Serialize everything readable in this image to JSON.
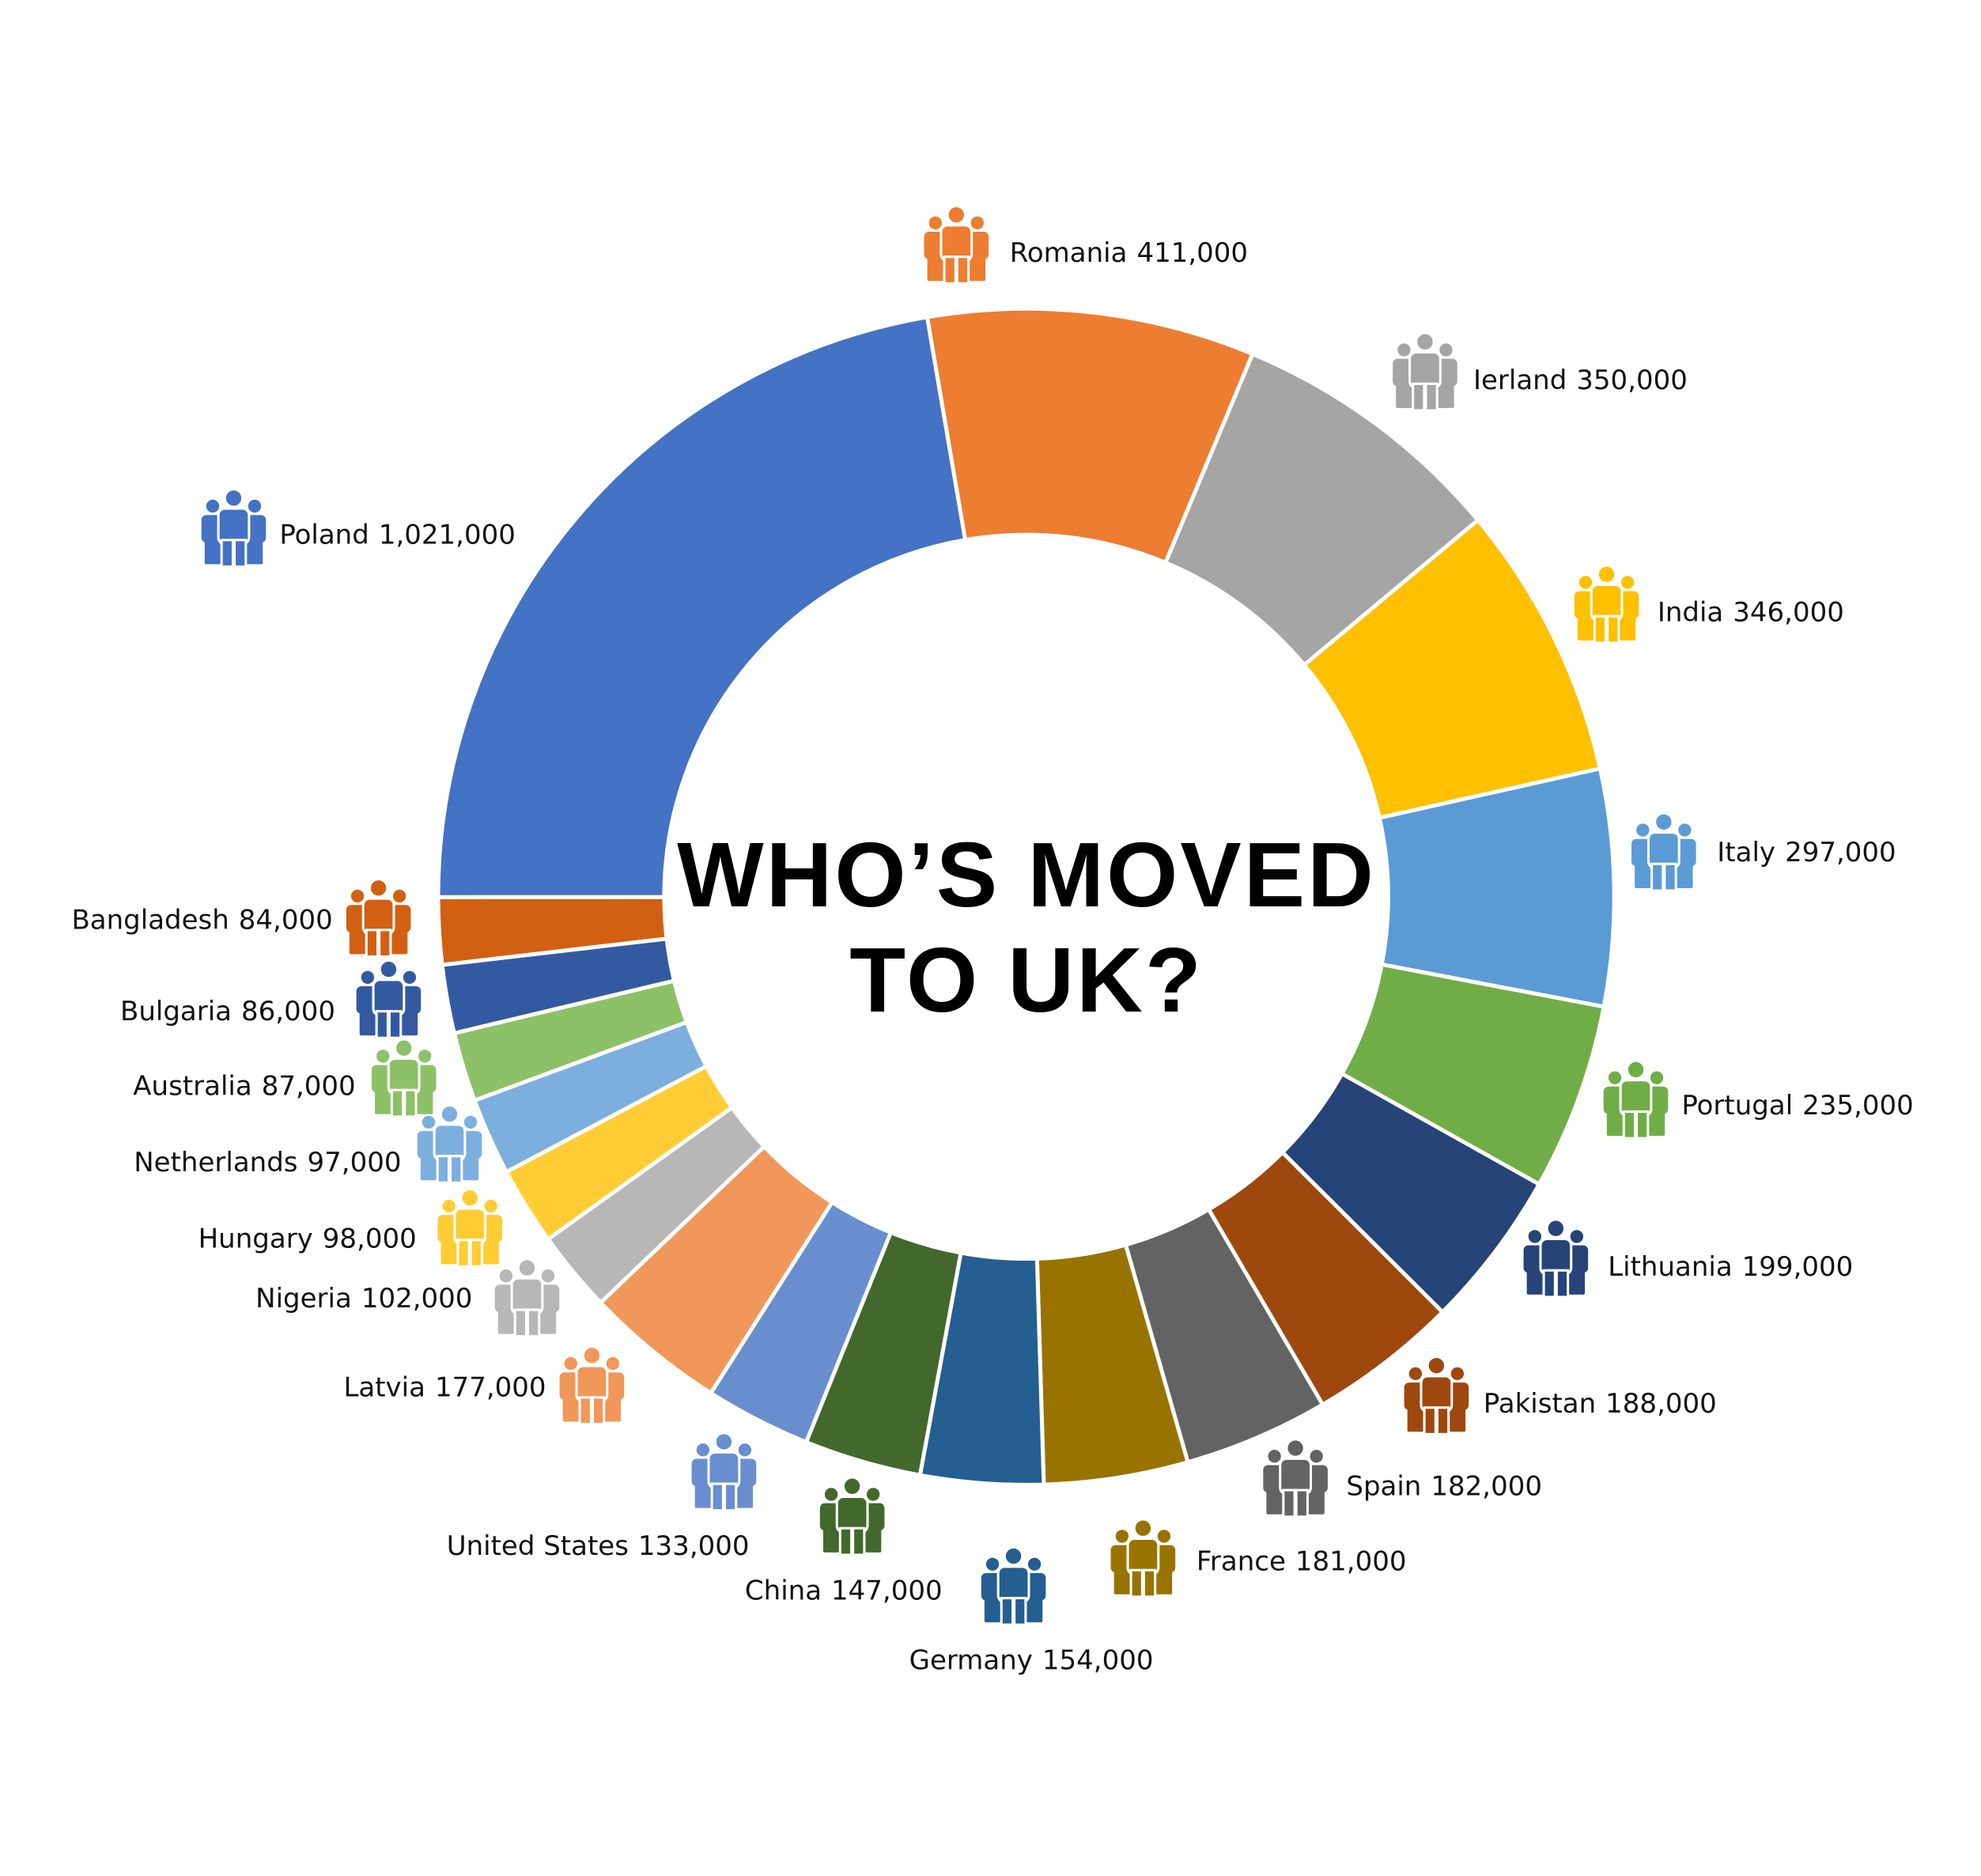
{
  "chart_data": {
    "type": "donut",
    "title": "WHO’S MOVED TO UK?",
    "categories": [
      "Romania",
      "Ierland",
      "India",
      "Italy",
      "Portugal",
      "Lithuania",
      "Pakistan",
      "Spain",
      "France",
      "Germany",
      "China",
      "United States",
      "Latvia",
      "Nigeria",
      "Hungary",
      "Netherlands",
      "Australia",
      "Bulgaria",
      "Bangladesh",
      "Poland"
    ],
    "values": [
      411000,
      350000,
      346000,
      297000,
      235000,
      199000,
      188000,
      182000,
      181000,
      154000,
      147000,
      133000,
      177000,
      102000,
      98000,
      97000,
      87000,
      86000,
      84000,
      1021000
    ],
    "value_labels": [
      "411,000",
      "350,000",
      "346,000",
      "297,000",
      "235,000",
      "199,000",
      "188,000",
      "182,000",
      "181,000",
      "154,000",
      "147,000",
      "133,000",
      "177,000",
      "102,000",
      "98,000",
      "97,000",
      "87,000",
      "86,000",
      "84,000",
      "1,021,000"
    ],
    "colors": [
      "#ED7D31",
      "#A5A5A5",
      "#FFC000",
      "#5B9BD5",
      "#70AD47",
      "#264478",
      "#9E480E",
      "#636363",
      "#997300",
      "#255E91",
      "#43682B",
      "#698ED0",
      "#F1975A",
      "#B7B7B7",
      "#FFCD33",
      "#7CAFDD",
      "#8CC168",
      "#335AA1",
      "#D26012",
      "#4472C4"
    ]
  }
}
